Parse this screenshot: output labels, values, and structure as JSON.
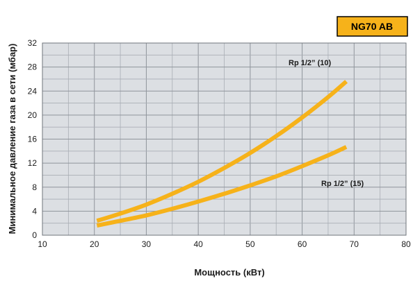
{
  "chart_data": {
    "type": "line",
    "title": "NG70 AB",
    "xlabel": "Мощность (кВт)",
    "ylabel": "Минимальное давление газа в сети (мбар)",
    "xlim": [
      10,
      80
    ],
    "ylim": [
      0,
      32
    ],
    "x_ticks": [
      10,
      20,
      30,
      40,
      50,
      60,
      70,
      80
    ],
    "y_ticks": [
      0,
      4,
      8,
      12,
      16,
      20,
      24,
      28,
      32
    ],
    "grid": true,
    "series": [
      {
        "name": "Rp 1/2” (10)",
        "color": "#f6b21a",
        "x": [
          20.5,
          25,
          30,
          35,
          40,
          45,
          50,
          55,
          60,
          65,
          68.5
        ],
        "y": [
          2.4,
          3.6,
          5.1,
          6.9,
          8.9,
          11.2,
          13.7,
          16.5,
          19.6,
          23.0,
          25.6
        ]
      },
      {
        "name": "Rp 1/2” (15)",
        "color": "#f6b21a",
        "x": [
          20.5,
          25,
          30,
          35,
          40,
          45,
          50,
          55,
          60,
          65,
          68.5
        ],
        "y": [
          1.6,
          2.4,
          3.3,
          4.4,
          5.6,
          6.9,
          8.3,
          9.8,
          11.5,
          13.3,
          14.7
        ]
      }
    ],
    "badge_color": "#f6b21a"
  }
}
